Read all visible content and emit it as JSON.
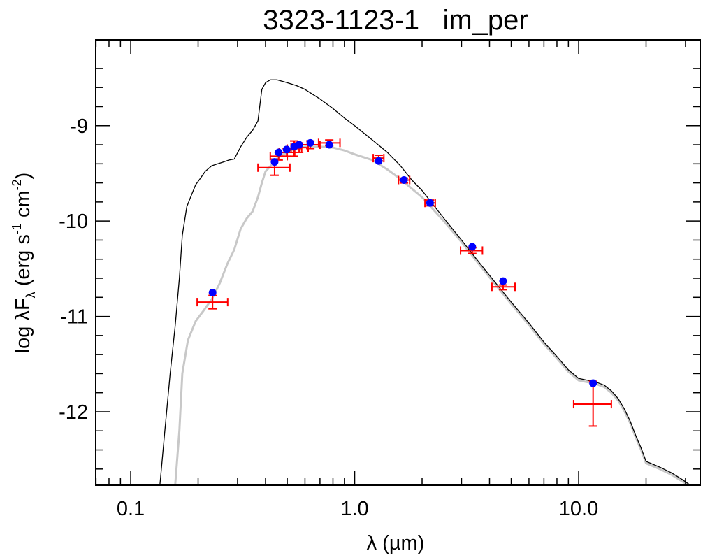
{
  "chart_data": {
    "type": "scatter",
    "title": "3323-1123-1   im_per",
    "xlabel": "λ (µm)",
    "ylabel_parts": {
      "pre": "log λF",
      "sub": "λ",
      "mid": " (erg s",
      "sup1": "-1",
      "mid2": " cm",
      "sup2": "-2",
      "post": ")"
    },
    "ylabel": "log λF_λ (erg s^-1 cm^-2)",
    "xscale": "log",
    "xlim": [
      0.0698,
      34.9
    ],
    "ylim": [
      -12.77,
      -8.1
    ],
    "x_ticks": [
      {
        "value": 0.1,
        "label": "0.1"
      },
      {
        "value": 1.0,
        "label": "1.0"
      },
      {
        "value": 10.0,
        "label": "10.0"
      }
    ],
    "y_ticks": [
      {
        "value": -9,
        "label": "-9"
      },
      {
        "value": -10,
        "label": "-10"
      },
      {
        "value": -11,
        "label": "-11"
      },
      {
        "value": -12,
        "label": "-12"
      }
    ],
    "grid": false,
    "series": [
      {
        "name": "observed photometry",
        "kind": "errorbar",
        "color": "#ff0000",
        "points": [
          {
            "x": 0.232,
            "y": -10.85,
            "xlo": 0.198,
            "xhi": 0.271,
            "ylo": -10.92,
            "yhi": -10.78
          },
          {
            "x": 0.439,
            "y": -9.44,
            "xlo": 0.37,
            "xhi": 0.514,
            "ylo": -9.52,
            "yhi": -9.35
          },
          {
            "x": 0.458,
            "y": -9.32,
            "xlo": 0.42,
            "xhi": 0.5,
            "ylo": -9.36,
            "yhi": -9.28
          },
          {
            "x": 0.497,
            "y": -9.28,
            "xlo": 0.46,
            "xhi": 0.54,
            "ylo": -9.32,
            "yhi": -9.24
          },
          {
            "x": 0.537,
            "y": -9.24,
            "xlo": 0.5,
            "xhi": 0.58,
            "ylo": -9.32,
            "yhi": -9.16
          },
          {
            "x": 0.565,
            "y": -9.23,
            "xlo": 0.52,
            "xhi": 0.62,
            "ylo": -9.28,
            "yhi": -9.18
          },
          {
            "x": 0.634,
            "y": -9.2,
            "xlo": 0.56,
            "xhi": 0.7,
            "ylo": -9.24,
            "yhi": -9.16
          },
          {
            "x": 0.77,
            "y": -9.18,
            "xlo": 0.69,
            "xhi": 0.86,
            "ylo": -9.21,
            "yhi": -9.15
          },
          {
            "x": 1.28,
            "y": -9.34,
            "xlo": 1.21,
            "xhi": 1.35,
            "ylo": -9.37,
            "yhi": -9.31
          },
          {
            "x": 1.66,
            "y": -9.57,
            "xlo": 1.57,
            "xhi": 1.76,
            "ylo": -9.6,
            "yhi": -9.55
          },
          {
            "x": 2.17,
            "y": -9.81,
            "xlo": 2.06,
            "xhi": 2.29,
            "ylo": -9.84,
            "yhi": -9.78
          },
          {
            "x": 3.35,
            "y": -10.31,
            "xlo": 2.97,
            "xhi": 3.72,
            "ylo": -10.34,
            "yhi": -10.28
          },
          {
            "x": 4.6,
            "y": -10.69,
            "xlo": 4.1,
            "xhi": 5.2,
            "ylo": -10.72,
            "yhi": -10.67
          },
          {
            "x": 11.6,
            "y": -11.92,
            "xlo": 9.5,
            "xhi": 14.0,
            "ylo": -12.15,
            "yhi": -11.68
          }
        ]
      },
      {
        "name": "model photometry",
        "kind": "points",
        "color": "#0000ff",
        "points": [
          {
            "x": 0.232,
            "y": -10.75
          },
          {
            "x": 0.439,
            "y": -9.38
          },
          {
            "x": 0.458,
            "y": -9.28
          },
          {
            "x": 0.497,
            "y": -9.25
          },
          {
            "x": 0.537,
            "y": -9.22
          },
          {
            "x": 0.565,
            "y": -9.2
          },
          {
            "x": 0.634,
            "y": -9.18
          },
          {
            "x": 0.77,
            "y": -9.2
          },
          {
            "x": 1.28,
            "y": -9.37
          },
          {
            "x": 1.66,
            "y": -9.57
          },
          {
            "x": 2.17,
            "y": -9.81
          },
          {
            "x": 3.35,
            "y": -10.27
          },
          {
            "x": 4.6,
            "y": -10.63
          },
          {
            "x": 11.6,
            "y": -11.7
          }
        ]
      },
      {
        "name": "unreddened model spectrum",
        "kind": "line",
        "color": "#000000",
        "points": [
          [
            0.135,
            -12.77
          ],
          [
            0.142,
            -12.2
          ],
          [
            0.15,
            -11.6
          ],
          [
            0.158,
            -11.1
          ],
          [
            0.165,
            -10.6
          ],
          [
            0.17,
            -10.15
          ],
          [
            0.178,
            -9.85
          ],
          [
            0.185,
            -9.75
          ],
          [
            0.195,
            -9.62
          ],
          [
            0.205,
            -9.55
          ],
          [
            0.215,
            -9.48
          ],
          [
            0.23,
            -9.42
          ],
          [
            0.245,
            -9.4
          ],
          [
            0.26,
            -9.38
          ],
          [
            0.275,
            -9.36
          ],
          [
            0.29,
            -9.35
          ],
          [
            0.31,
            -9.22
          ],
          [
            0.33,
            -9.12
          ],
          [
            0.35,
            -9.05
          ],
          [
            0.37,
            -8.95
          ],
          [
            0.385,
            -8.62
          ],
          [
            0.4,
            -8.55
          ],
          [
            0.42,
            -8.52
          ],
          [
            0.45,
            -8.52
          ],
          [
            0.5,
            -8.55
          ],
          [
            0.55,
            -8.58
          ],
          [
            0.6,
            -8.62
          ],
          [
            0.7,
            -8.72
          ],
          [
            0.8,
            -8.82
          ],
          [
            0.9,
            -8.92
          ],
          [
            1.0,
            -9.0
          ],
          [
            1.2,
            -9.15
          ],
          [
            1.4,
            -9.28
          ],
          [
            1.6,
            -9.42
          ],
          [
            1.8,
            -9.57
          ],
          [
            2.0,
            -9.68
          ],
          [
            2.5,
            -9.97
          ],
          [
            3.0,
            -10.2
          ],
          [
            3.5,
            -10.4
          ],
          [
            4.0,
            -10.57
          ],
          [
            5.0,
            -10.85
          ],
          [
            6.0,
            -11.07
          ],
          [
            7.0,
            -11.27
          ],
          [
            8.0,
            -11.42
          ],
          [
            9.0,
            -11.56
          ],
          [
            10.0,
            -11.65
          ],
          [
            11.0,
            -11.67
          ],
          [
            12.0,
            -11.69
          ],
          [
            13.0,
            -11.72
          ],
          [
            14.0,
            -11.78
          ],
          [
            15.0,
            -11.86
          ],
          [
            16.0,
            -11.97
          ],
          [
            17.0,
            -12.1
          ],
          [
            18.0,
            -12.25
          ],
          [
            19.0,
            -12.38
          ],
          [
            20.0,
            -12.52
          ],
          [
            23.0,
            -12.58
          ],
          [
            26.0,
            -12.64
          ],
          [
            29.0,
            -12.71
          ],
          [
            32.0,
            -12.78
          ]
        ]
      },
      {
        "name": "reddened model spectrum",
        "kind": "line",
        "color": "#c8c8c8",
        "points": [
          [
            0.158,
            -12.77
          ],
          [
            0.165,
            -12.2
          ],
          [
            0.17,
            -11.6
          ],
          [
            0.18,
            -11.25
          ],
          [
            0.195,
            -11.05
          ],
          [
            0.21,
            -10.95
          ],
          [
            0.23,
            -10.82
          ],
          [
            0.25,
            -10.65
          ],
          [
            0.27,
            -10.45
          ],
          [
            0.29,
            -10.3
          ],
          [
            0.31,
            -10.08
          ],
          [
            0.33,
            -9.97
          ],
          [
            0.35,
            -9.9
          ],
          [
            0.37,
            -9.75
          ],
          [
            0.385,
            -9.6
          ],
          [
            0.4,
            -9.48
          ],
          [
            0.43,
            -9.4
          ],
          [
            0.46,
            -9.32
          ],
          [
            0.5,
            -9.28
          ],
          [
            0.55,
            -9.24
          ],
          [
            0.6,
            -9.22
          ],
          [
            0.7,
            -9.22
          ],
          [
            0.8,
            -9.23
          ],
          [
            0.9,
            -9.26
          ],
          [
            1.0,
            -9.3
          ],
          [
            1.2,
            -9.36
          ],
          [
            1.4,
            -9.46
          ],
          [
            1.6,
            -9.56
          ],
          [
            1.8,
            -9.66
          ],
          [
            2.0,
            -9.75
          ],
          [
            2.5,
            -10.0
          ],
          [
            3.0,
            -10.22
          ],
          [
            3.5,
            -10.42
          ],
          [
            4.0,
            -10.59
          ],
          [
            5.0,
            -10.87
          ],
          [
            6.0,
            -11.09
          ],
          [
            7.0,
            -11.29
          ],
          [
            8.0,
            -11.44
          ],
          [
            9.0,
            -11.58
          ],
          [
            10.0,
            -11.67
          ],
          [
            11.0,
            -11.69
          ],
          [
            12.0,
            -11.71
          ],
          [
            13.0,
            -11.74
          ],
          [
            14.0,
            -11.8
          ],
          [
            15.0,
            -11.88
          ],
          [
            16.0,
            -11.99
          ],
          [
            17.0,
            -12.12
          ],
          [
            18.0,
            -12.27
          ],
          [
            19.0,
            -12.4
          ],
          [
            20.0,
            -12.54
          ],
          [
            23.0,
            -12.6
          ],
          [
            26.0,
            -12.66
          ],
          [
            29.0,
            -12.73
          ],
          [
            32.0,
            -12.79
          ]
        ]
      }
    ]
  }
}
